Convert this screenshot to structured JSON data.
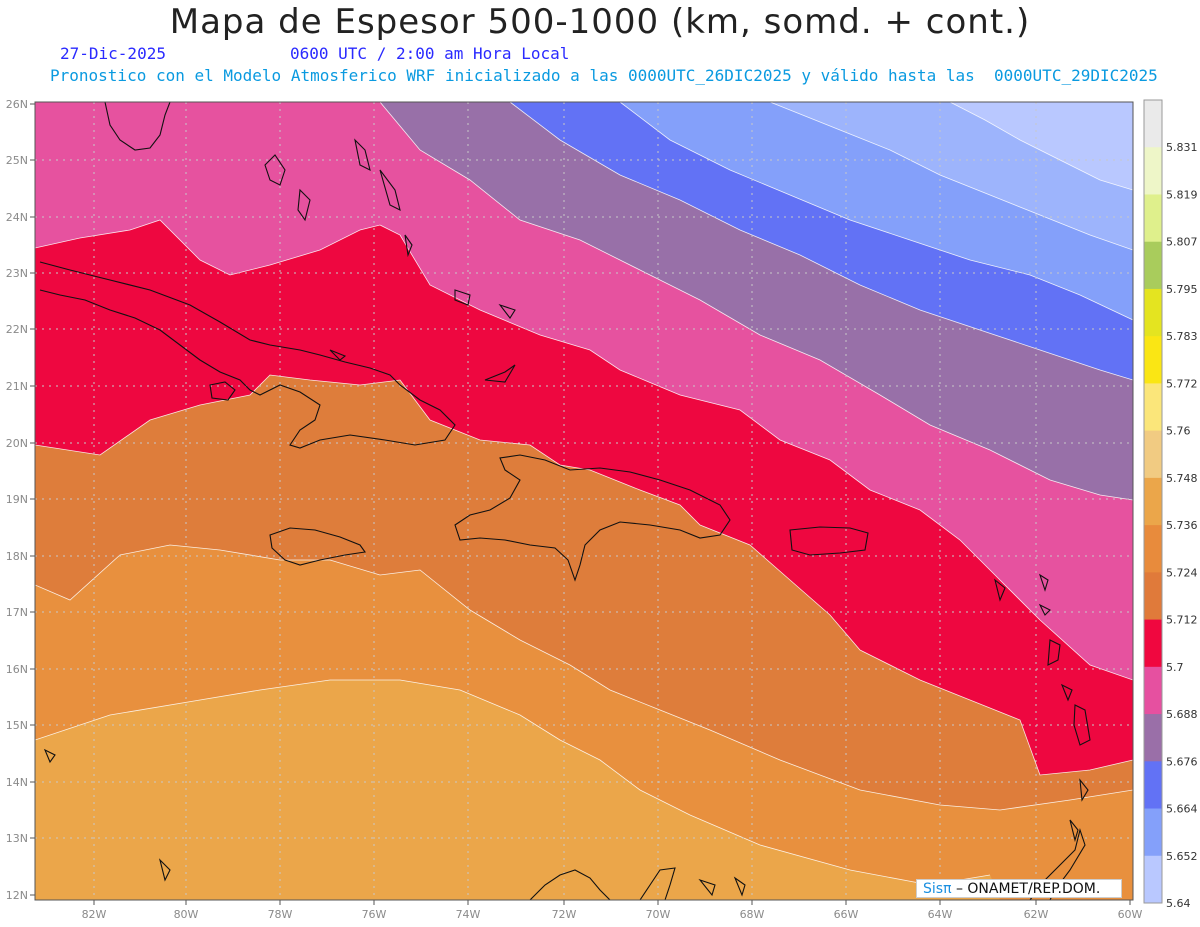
{
  "header": {
    "title": "Mapa de Espesor 500-1000 (km, somd. + cont.)",
    "date": "27-Dic-2025",
    "time": "0600 UTC / 2:00 am Hora Local",
    "description": "Pronostico con el Modelo Atmosferico WRF inicializado a las 0000UTC_26DIC2025 y válido hasta las  0000UTC_29DIC2025"
  },
  "map": {
    "lat_labels": [
      "26N",
      "25N",
      "24N",
      "23N",
      "22N",
      "21N",
      "20N",
      "19N",
      "18N",
      "17N",
      "16N",
      "15N",
      "14N",
      "13N",
      "12N"
    ],
    "lon_labels": [
      "82W",
      "80W",
      "78W",
      "76W",
      "74W",
      "72W",
      "70W",
      "68W",
      "66W",
      "64W",
      "62W",
      "60W"
    ],
    "bands": [
      {
        "level": 5.712,
        "color": "#e88a3a"
      },
      {
        "level": 5.7,
        "color": "#e07a3a"
      },
      {
        "level": 5.688,
        "color": "#f0073f"
      },
      {
        "level": 5.676,
        "color": "#e650a0"
      },
      {
        "level": 5.664,
        "color": "#9a6fa8"
      },
      {
        "level": 5.652,
        "color": "#6272f5"
      },
      {
        "level": 5.64,
        "color": "#84a0fa"
      }
    ]
  },
  "colorbar": {
    "labels": [
      "5.831",
      "5.819",
      "5.807",
      "5.795",
      "5.783",
      "5.772",
      "5.76",
      "5.748",
      "5.736",
      "5.724",
      "5.712",
      "5.7",
      "5.688",
      "5.676",
      "5.664",
      "5.652",
      "5.64"
    ],
    "colors": [
      "#eaeaea",
      "#eef6c8",
      "#dff08c",
      "#a9cc5c",
      "#e4e420",
      "#fae614",
      "#fbe67a",
      "#f1cb82",
      "#eba64a",
      "#e88b3c",
      "#e07a3a",
      "#f0073f",
      "#e650a0",
      "#9a6fa8",
      "#6272f5",
      "#84a0fa",
      "#b9c8ff"
    ]
  },
  "credit": {
    "brand": "Sisπ",
    "text": "– ONAMET/REP.DOM."
  }
}
